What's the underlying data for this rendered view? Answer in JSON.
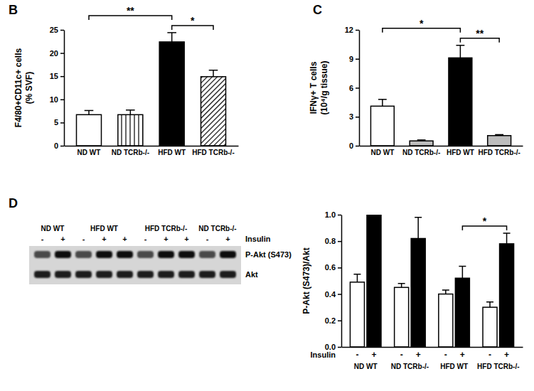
{
  "chart_data": [
    {
      "type": "bar",
      "title": "B",
      "ylabel": [
        "F4/80+CD11c+ cells",
        "(% SVF)"
      ],
      "categories": [
        "ND WT",
        "ND TCRb-/-",
        "HFD WT",
        "HFD TCRb-/-"
      ],
      "values": [
        6.7,
        6.7,
        22.4,
        14.9
      ],
      "errors": [
        0.9,
        1.0,
        2.0,
        1.4
      ],
      "colors": [
        "#ffffff",
        "#ffffff",
        "#000000",
        "#ffffff"
      ],
      "ylim": [
        0,
        25
      ],
      "yticks": [
        0,
        5,
        10,
        15,
        20,
        25
      ],
      "annotations": [
        {
          "text": "**",
          "from": "ND WT",
          "to": "HFD WT"
        },
        {
          "text": "*",
          "from": "HFD WT",
          "to": "HFD TCRb-/-"
        }
      ]
    },
    {
      "type": "bar",
      "title": "C",
      "ylabel": [
        "IFNγ+ T cells",
        "(10⁴/g tissue)"
      ],
      "categories": [
        "ND WT",
        "ND TCRb-/-",
        "HFD WT",
        "HFD TCRb-/-"
      ],
      "values": [
        4.1,
        0.5,
        9.1,
        1.05
      ],
      "errors": [
        0.7,
        0.1,
        1.3,
        0.1
      ],
      "colors": [
        "#ffffff",
        "#bdbdbd",
        "#000000",
        "#bdbdbd"
      ],
      "ylim": [
        0,
        12
      ],
      "yticks": [
        0,
        3,
        6,
        9,
        12
      ],
      "annotations": [
        {
          "text": "*",
          "from": "ND WT",
          "to": "HFD WT"
        },
        {
          "text": "**",
          "from": "HFD WT",
          "to": "HFD TCRb-/-"
        }
      ]
    },
    {
      "type": "bar",
      "title": "D",
      "ylabel": [
        "P-Akt (S473)/Akt"
      ],
      "xlabel": "Insulin",
      "categories": [
        "ND WT",
        "ND TCRb-/-",
        "HFD WT",
        "HFD TCRb-/-"
      ],
      "series": [
        {
          "name": "-",
          "color": "#ffffff",
          "values": [
            0.49,
            0.45,
            0.4,
            0.3
          ],
          "errors": [
            0.06,
            0.03,
            0.03,
            0.04
          ]
        },
        {
          "name": "+",
          "color": "#000000",
          "values": [
            1.0,
            0.82,
            0.52,
            0.78
          ],
          "errors": [
            0,
            0.16,
            0.09,
            0.08
          ]
        }
      ],
      "ylim": [
        0,
        1
      ],
      "yticks": [
        {
          "value": 0,
          "label": "0.0"
        },
        {
          "value": 0.2,
          "label": "0.2"
        },
        {
          "value": 0.4,
          "label": "0.4"
        },
        {
          "value": 0.6,
          "label": "0.6"
        },
        {
          "value": 0.8,
          "label": "0.8"
        },
        {
          "value": 1,
          "label": "1.0"
        }
      ],
      "annotations": [
        {
          "text": "*",
          "from": "HFD WT",
          "to": "HFD TCRb-/-"
        }
      ]
    }
  ],
  "blot": {
    "row_label": "Insulin",
    "bands": [
      "P-Akt (S473)",
      "Akt"
    ],
    "groups": [
      {
        "label": "ND WT",
        "insulin": [
          "-",
          "+"
        ]
      },
      {
        "label": "HFD WT",
        "insulin": [
          "-",
          "+",
          "+"
        ]
      },
      {
        "label": "HFD TCRb-/-",
        "insulin": [
          "-",
          "+",
          "+"
        ]
      },
      {
        "label": "ND TCRb-/-",
        "insulin": [
          "-",
          "+"
        ]
      }
    ]
  }
}
